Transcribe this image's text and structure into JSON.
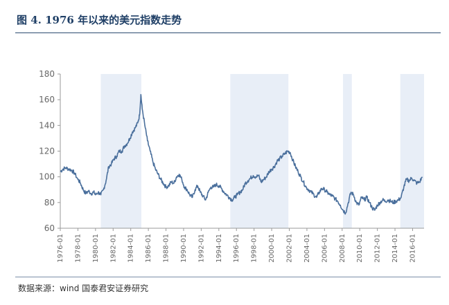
{
  "figure": {
    "title": "图 4. 1976 年以来的美元指数走势",
    "source": "数据来源：wind  国泰君安证券研究"
  },
  "colors": {
    "line": "#4a6f9c",
    "shade": "#e8eef7",
    "title": "#1f3f66",
    "axis": "#999999"
  },
  "chart_data": {
    "type": "line",
    "title": "",
    "xlabel": "",
    "ylabel": "",
    "ylim": [
      60,
      180
    ],
    "xlim": [
      1976.0,
      2017.3
    ],
    "yticks": [
      60,
      80,
      100,
      120,
      140,
      160,
      180
    ],
    "yticklabels": [
      "60",
      "80",
      "100",
      "120",
      "140",
      "160",
      "180"
    ],
    "xticks": [
      1976,
      1978,
      1980,
      1982,
      1984,
      1986,
      1988,
      1990,
      1992,
      1994,
      1996,
      1998,
      2000,
      2002,
      2004,
      2006,
      2008,
      2010,
      2012,
      2014,
      2016
    ],
    "xticklabels": [
      "1976-01",
      "1978-01",
      "1980-01",
      "1982-01",
      "1984-01",
      "1986-01",
      "1988-01",
      "1990-01",
      "1992-01",
      "1994-01",
      "1996-01",
      "1998-01",
      "2000-01",
      "2002-01",
      "2004-01",
      "2006-01",
      "2008-01",
      "2010-01",
      "2012-01",
      "2014-01",
      "2016-01"
    ],
    "grid": false,
    "shaded_periods": [
      [
        1980.6,
        1985.2
      ],
      [
        1995.3,
        2001.9
      ],
      [
        2008.1,
        2009.1
      ],
      [
        2014.6,
        2017.3
      ]
    ],
    "series": [
      {
        "name": "",
        "x": [
          1976.0,
          1976.3,
          1976.6,
          1977.0,
          1977.3,
          1977.6,
          1978.0,
          1978.3,
          1978.6,
          1978.9,
          1979.2,
          1979.5,
          1979.8,
          1980.0,
          1980.3,
          1980.6,
          1980.9,
          1981.2,
          1981.5,
          1981.8,
          1982.1,
          1982.4,
          1982.7,
          1983.0,
          1983.3,
          1983.6,
          1983.9,
          1984.2,
          1984.5,
          1984.8,
          1985.0,
          1985.15,
          1985.3,
          1985.6,
          1985.9,
          1986.2,
          1986.5,
          1986.8,
          1987.1,
          1987.4,
          1987.7,
          1988.0,
          1988.3,
          1988.6,
          1988.9,
          1989.2,
          1989.5,
          1989.8,
          1990.1,
          1990.4,
          1990.7,
          1991.0,
          1991.3,
          1991.6,
          1991.9,
          1992.2,
          1992.5,
          1992.8,
          1993.1,
          1993.4,
          1993.7,
          1994.0,
          1994.3,
          1994.6,
          1994.9,
          1995.2,
          1995.5,
          1995.8,
          1996.1,
          1996.4,
          1996.7,
          1997.0,
          1997.3,
          1997.6,
          1997.9,
          1998.2,
          1998.5,
          1998.8,
          1999.1,
          1999.4,
          1999.7,
          2000.0,
          2000.3,
          2000.6,
          2000.9,
          2001.2,
          2001.5,
          2001.8,
          2002.1,
          2002.4,
          2002.7,
          2003.0,
          2003.3,
          2003.6,
          2003.9,
          2004.2,
          2004.5,
          2004.8,
          2005.1,
          2005.4,
          2005.7,
          2006.0,
          2006.3,
          2006.6,
          2006.9,
          2007.2,
          2007.5,
          2007.8,
          2008.1,
          2008.4,
          2008.7,
          2009.0,
          2009.3,
          2009.6,
          2009.9,
          2010.2,
          2010.5,
          2010.8,
          2011.1,
          2011.4,
          2011.7,
          2012.0,
          2012.3,
          2012.6,
          2012.9,
          2013.2,
          2013.5,
          2013.8,
          2014.1,
          2014.4,
          2014.7,
          2015.0,
          2015.3,
          2015.6,
          2015.9,
          2016.2,
          2016.5,
          2016.8,
          2017.1
        ],
        "values": [
          104,
          106,
          107,
          106,
          105,
          103,
          98,
          95,
          90,
          87,
          89,
          87,
          88,
          86,
          88,
          86,
          90,
          97,
          108,
          110,
          114,
          116,
          120,
          120,
          124,
          126,
          130,
          135,
          138,
          142,
          148,
          164,
          153,
          140,
          128,
          120,
          112,
          106,
          102,
          98,
          95,
          92,
          93,
          96,
          95,
          100,
          102,
          98,
          92,
          90,
          86,
          84,
          90,
          93,
          88,
          85,
          82,
          88,
          92,
          92,
          94,
          93,
          91,
          88,
          86,
          84,
          82,
          84,
          86,
          88,
          90,
          95,
          97,
          99,
          101,
          100,
          101,
          96,
          98,
          100,
          104,
          106,
          108,
          112,
          114,
          116,
          118,
          120,
          119,
          113,
          108,
          104,
          100,
          96,
          92,
          90,
          88,
          86,
          84,
          88,
          91,
          90,
          88,
          86,
          85,
          83,
          81,
          78,
          74,
          72,
          80,
          88,
          86,
          80,
          78,
          84,
          82,
          84,
          80,
          76,
          74,
          78,
          80,
          82,
          81,
          82,
          81,
          80,
          81,
          82,
          84,
          92,
          98,
          97,
          99,
          97,
          95,
          96,
          100
        ]
      }
    ]
  }
}
